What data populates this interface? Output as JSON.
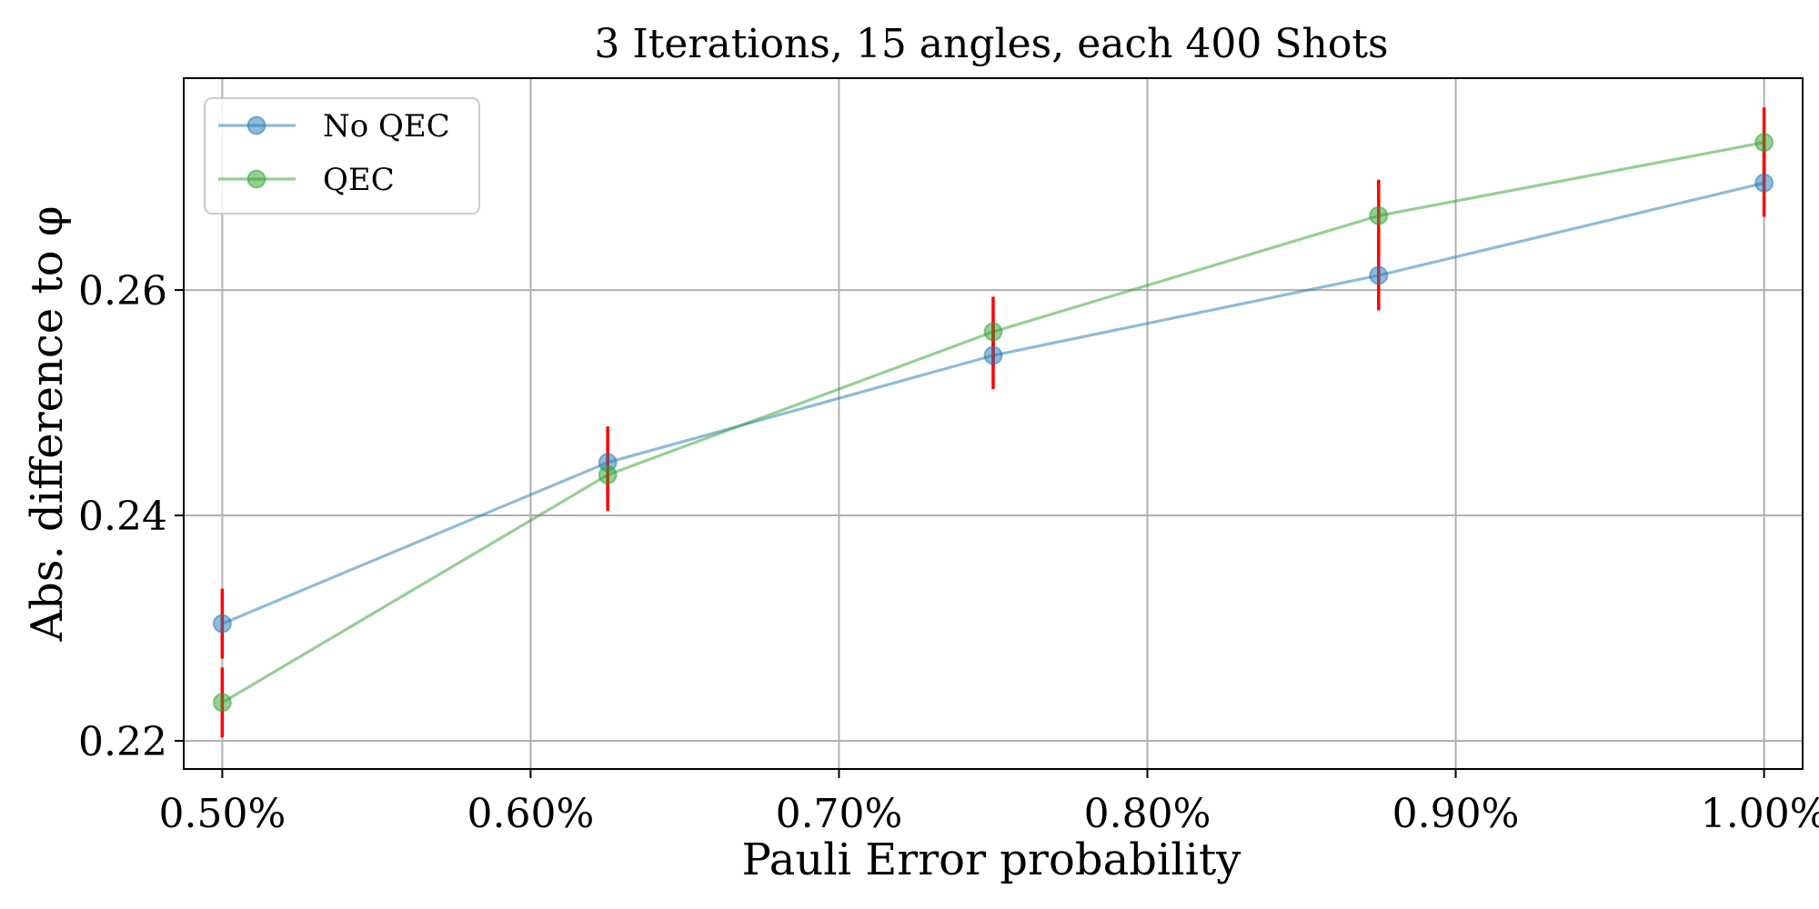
{
  "chart_data": {
    "type": "line",
    "title": "3 Iterations, 15 angles, each 400 Shots",
    "xlabel": "Pauli Error probability",
    "ylabel": "Abs. difference to φ",
    "x": [
      0.005,
      0.00625,
      0.0075,
      0.00875,
      0.01
    ],
    "xlim": [
      0.004875,
      0.010125
    ],
    "ylim": [
      0.2175,
      0.2788
    ],
    "xticks": [
      0.005,
      0.006,
      0.007,
      0.008,
      0.009,
      0.01
    ],
    "xtick_labels": [
      "0.50%",
      "0.60%",
      "0.70%",
      "0.80%",
      "0.90%",
      "1.00%"
    ],
    "yticks": [
      0.22,
      0.24,
      0.26
    ],
    "ytick_labels": [
      "0.22",
      "0.24",
      "0.26"
    ],
    "grid": true,
    "legend_position": "top-left",
    "errorbar_color": "#ff0000",
    "series": [
      {
        "name": "No QEC",
        "color": "#1f77b4",
        "values": [
          0.2304,
          0.2447,
          0.2542,
          0.2613,
          0.2695
        ],
        "error": [
          0.0031,
          0.0032,
          0.003,
          0.0031,
          0.003
        ]
      },
      {
        "name": "QEC",
        "color": "#2ca02c",
        "values": [
          0.2234,
          0.2436,
          0.2563,
          0.2666,
          0.2731
        ],
        "error": [
          0.0031,
          0.0032,
          0.0031,
          0.0032,
          0.0031
        ]
      }
    ]
  }
}
